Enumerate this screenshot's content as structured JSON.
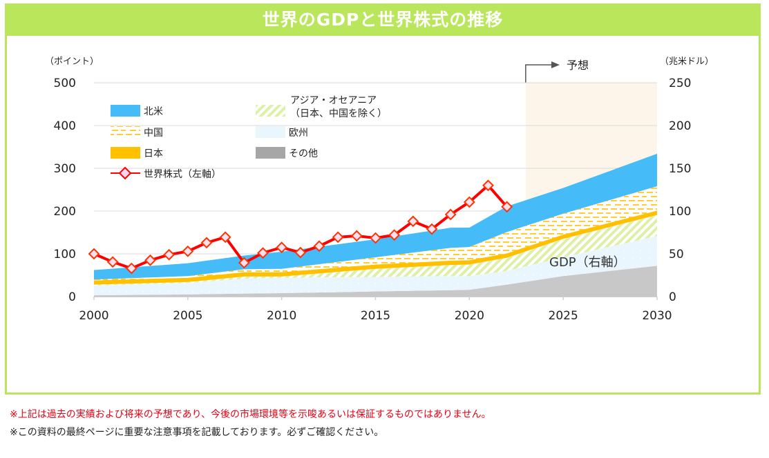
{
  "title": "世界のGDPと世界株式の推移",
  "notes": [
    "※上記は過去の実績および将来の予想であり、今後の市場環境等を示唆あるいは保証するものではありません。",
    "※この資料の最終ページに重要な注意事項を記載しております。必ずご確認ください。"
  ],
  "colors": {
    "accent": "#b9e65a",
    "north_america": "#45bbf8",
    "china": "#ffc000",
    "japan": "#ffc000",
    "asia": "#d8ee9a",
    "europe": "#eaf6fd",
    "other": "#c8c8c8",
    "stock": "#ff0000",
    "forecast": "#fdf5e9"
  },
  "chart_data": {
    "type": "area",
    "ylabel_left": "（ポイント）",
    "ylabel_right": "（兆米ドル）",
    "ylim_left": [
      0,
      500
    ],
    "ylim_right": [
      0,
      250
    ],
    "yticks_left": [
      "0",
      "100",
      "200",
      "300",
      "400",
      "500"
    ],
    "yticks_right": [
      "0",
      "50",
      "100",
      "150",
      "200",
      "250"
    ],
    "xlim": [
      2000,
      2030
    ],
    "xticks": [
      "2000",
      "2005",
      "2010",
      "2015",
      "2020",
      "2025",
      "2030"
    ],
    "grid": true,
    "forecast_label": "予想",
    "forecast_start": 2023,
    "gdp_label": "GDP（右軸）",
    "gdp_x": [
      2000,
      2005,
      2008,
      2010,
      2015,
      2019,
      2020,
      2022,
      2025,
      2030
    ],
    "gdp_series": [
      {
        "name": "その他",
        "key": "other",
        "values": [
          1.5,
          2.5,
          3.5,
          4,
          6,
          7.5,
          8,
          14,
          24,
          36
        ]
      },
      {
        "name": "欧州",
        "key": "europe",
        "values": [
          11.5,
          13.5,
          17.5,
          18,
          17,
          16.5,
          16,
          16,
          22,
          35
        ]
      },
      {
        "name": "アジア・オセアニア（日本、中国を除く）",
        "key": "asia",
        "values": [
          1,
          1,
          2.5,
          1.5,
          9.5,
          13,
          13.5,
          15.5,
          21.5,
          24.5
        ]
      },
      {
        "name": "日本",
        "key": "japan",
        "values": [
          5,
          5,
          5,
          5,
          5,
          5,
          5,
          5,
          5,
          5
        ]
      },
      {
        "name": "中国",
        "key": "china",
        "values": [
          1,
          2,
          3.5,
          4,
          8.5,
          15,
          15.5,
          25,
          24.5,
          28.5
        ]
      },
      {
        "name": "北米",
        "key": "north_america",
        "values": [
          11,
          15,
          16,
          20,
          21,
          23.5,
          22.6,
          30,
          30,
          38
        ]
      }
    ],
    "stock": {
      "name": "世界株式（左軸）",
      "x": [
        2000,
        2001,
        2002,
        2003,
        2004,
        2005,
        2006,
        2007,
        2008,
        2009,
        2010,
        2011,
        2012,
        2013,
        2014,
        2015,
        2016,
        2017,
        2018,
        2019,
        2020,
        2021,
        2022
      ],
      "values": [
        100,
        81,
        66,
        85,
        98,
        106,
        126,
        139,
        79,
        102,
        115,
        103,
        118,
        139,
        142,
        137,
        144,
        176,
        158,
        192,
        221,
        260,
        210
      ]
    },
    "legend": {
      "placement": "top-left",
      "items": [
        {
          "label": "北米",
          "key": "north_america"
        },
        {
          "label": "アジア・オセアニア",
          "label2": "（日本、中国を除く）",
          "key": "asia"
        },
        {
          "label": "中国",
          "key": "china"
        },
        {
          "label": "欧州",
          "key": "europe"
        },
        {
          "label": "日本",
          "key": "japan"
        },
        {
          "label": "その他",
          "key": "other"
        },
        {
          "label": "世界株式（左軸）",
          "key": "stock"
        }
      ]
    }
  }
}
